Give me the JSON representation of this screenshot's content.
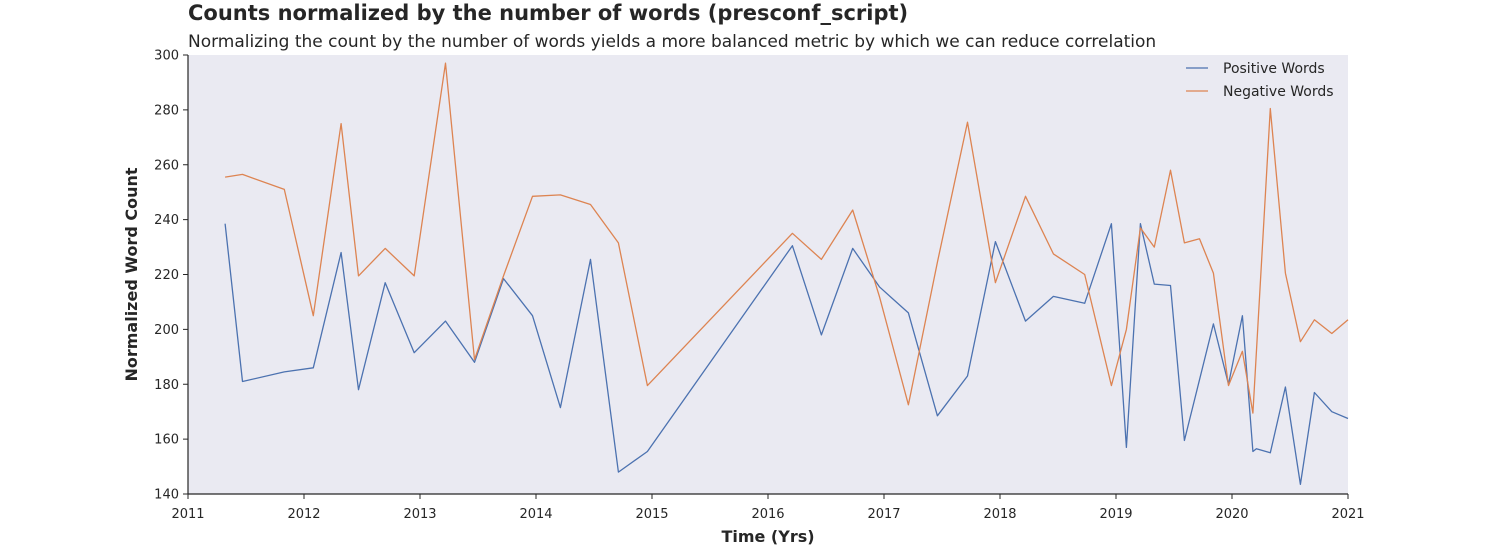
{
  "chart_data": {
    "type": "line",
    "title": "Counts normalized by the number of words (presconf_script)",
    "subtitle": "Normalizing the count by the number of words yields a more balanced metric by which we can reduce correlation",
    "xlabel": "Time (Yrs)",
    "ylabel": "Normalized Word Count",
    "xlim": [
      2011,
      2021
    ],
    "ylim": [
      140,
      300
    ],
    "xticks": [
      2011,
      2012,
      2013,
      2014,
      2015,
      2016,
      2017,
      2018,
      2019,
      2020,
      2021
    ],
    "yticks": [
      140,
      160,
      180,
      200,
      220,
      240,
      260,
      280,
      300
    ],
    "grid": false,
    "background": "#eaeaf2",
    "legend_position": "top-right",
    "series": [
      {
        "name": "Positive Words",
        "color": "#4c72b0",
        "x": [
          2011.32,
          2011.47,
          2011.83,
          2012.08,
          2012.32,
          2012.47,
          2012.7,
          2012.95,
          2013.22,
          2013.47,
          2013.72,
          2013.97,
          2014.21,
          2014.47,
          2014.71,
          2014.96,
          2016.21,
          2016.46,
          2016.73,
          2016.96,
          2017.21,
          2017.46,
          2017.72,
          2017.96,
          2018.22,
          2018.46,
          2018.73,
          2018.96,
          2019.09,
          2019.21,
          2019.33,
          2019.47,
          2019.59,
          2019.84,
          2019.97,
          2020.09,
          2020.18,
          2020.21,
          2020.33,
          2020.46,
          2020.59,
          2020.71,
          2020.86,
          2021.0
        ],
        "values": [
          238.5,
          181.0,
          184.5,
          186.0,
          228.0,
          178.0,
          217.0,
          191.5,
          203.0,
          188.0,
          218.5,
          205.0,
          171.5,
          225.5,
          148.0,
          155.5,
          230.5,
          198.0,
          229.5,
          215.5,
          206.0,
          168.5,
          183.0,
          232.0,
          203.0,
          212.0,
          209.5,
          238.5,
          157.0,
          238.5,
          216.5,
          216.0,
          159.5,
          202.0,
          180.0,
          205.0,
          155.5,
          156.5,
          155.0,
          179.0,
          143.5,
          177.0,
          170.0,
          167.5
        ]
      },
      {
        "name": "Negative Words",
        "color": "#dd8452",
        "x": [
          2011.32,
          2011.47,
          2011.83,
          2012.08,
          2012.32,
          2012.47,
          2012.7,
          2012.95,
          2013.22,
          2013.47,
          2013.72,
          2013.97,
          2014.21,
          2014.47,
          2014.71,
          2014.96,
          2016.21,
          2016.46,
          2016.73,
          2016.96,
          2017.21,
          2017.46,
          2017.72,
          2017.96,
          2018.22,
          2018.46,
          2018.73,
          2018.96,
          2019.09,
          2019.21,
          2019.33,
          2019.47,
          2019.59,
          2019.72,
          2019.84,
          2019.97,
          2020.09,
          2020.18,
          2020.33,
          2020.46,
          2020.59,
          2020.71,
          2020.86,
          2021.0
        ],
        "values": [
          255.5,
          256.5,
          251.0,
          205.0,
          275.0,
          219.5,
          229.5,
          219.5,
          297.0,
          189.0,
          219.5,
          248.5,
          249.0,
          245.5,
          231.5,
          179.5,
          235.0,
          225.5,
          243.5,
          212.0,
          172.5,
          224.5,
          275.5,
          217.0,
          248.5,
          227.5,
          220.0,
          179.5,
          200.0,
          237.0,
          230.0,
          258.0,
          231.5,
          233.0,
          220.5,
          179.5,
          192.0,
          169.5,
          280.5,
          220.5,
          195.5,
          203.5,
          198.5,
          203.5
        ]
      }
    ]
  }
}
